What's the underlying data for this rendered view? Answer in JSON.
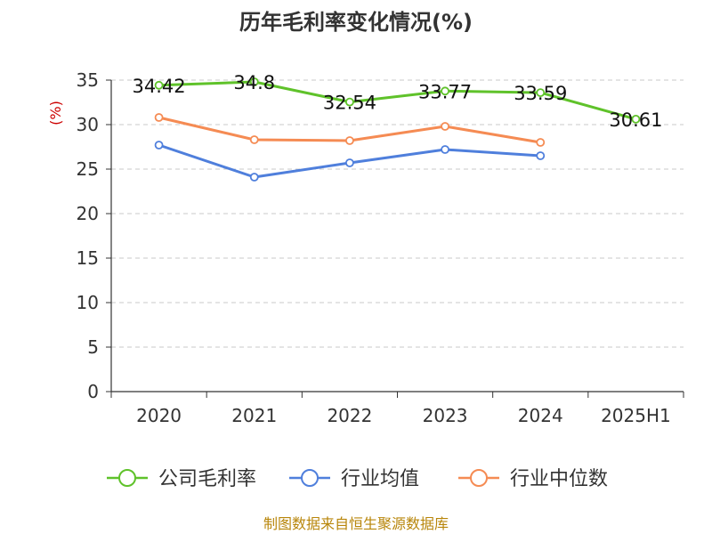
{
  "chart_data": {
    "type": "line",
    "title": "历年毛利率变化情况(%)",
    "ylabel": "(%)",
    "categories": [
      "2020",
      "2021",
      "2022",
      "2023",
      "2024",
      "2025H1"
    ],
    "ylim": [
      0,
      35
    ],
    "yticks": [
      0,
      5,
      10,
      15,
      20,
      25,
      30,
      35
    ],
    "grid": true,
    "legend_position": "bottom",
    "series": [
      {
        "name": "公司毛利率",
        "color": "#5fc22a",
        "values": [
          34.42,
          34.8,
          32.54,
          33.77,
          33.59,
          30.61
        ],
        "labels": [
          "34.42",
          "34.8",
          "32.54",
          "33.77",
          "33.59",
          "30.61"
        ]
      },
      {
        "name": "行业均值",
        "color": "#4f7fdc",
        "values": [
          27.7,
          24.1,
          25.7,
          27.2,
          26.5,
          null
        ]
      },
      {
        "name": "行业中位数",
        "color": "#f58b53",
        "values": [
          30.8,
          28.3,
          28.2,
          29.8,
          28.0,
          null
        ]
      }
    ]
  },
  "source": "制图数据来自恒生聚源数据库"
}
